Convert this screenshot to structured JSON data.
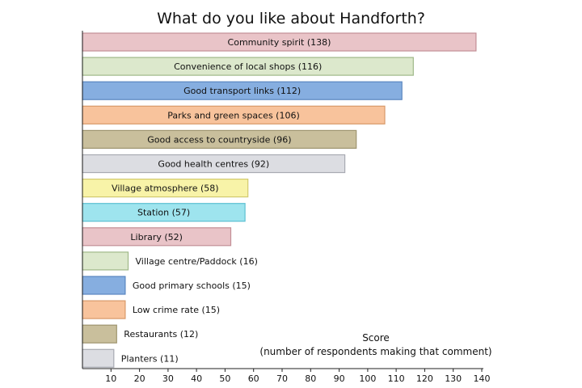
{
  "chart_data": {
    "type": "bar",
    "orientation": "horizontal",
    "title": "What do you like about Handforth?",
    "xlabel_line1": "Score",
    "xlabel_line2": "(number of respondents making that comment)",
    "xlim": [
      0,
      140
    ],
    "xticks": [
      10,
      20,
      30,
      40,
      50,
      60,
      70,
      80,
      90,
      100,
      110,
      120,
      130,
      140
    ],
    "grid": false,
    "bars": [
      {
        "label": "Community spirit (138)",
        "value": 138,
        "fill": "#e9c4c8",
        "stroke": "#c28f96"
      },
      {
        "label": "Convenience of local shops (116)",
        "value": 116,
        "fill": "#dce8cc",
        "stroke": "#9fb888"
      },
      {
        "label": "Good transport links (112)",
        "value": 112,
        "fill": "#86aee0",
        "stroke": "#5a86c0"
      },
      {
        "label": "Parks and green spaces (106)",
        "value": 106,
        "fill": "#f8c39c",
        "stroke": "#d89a6a"
      },
      {
        "label": "Good access to countryside (96)",
        "value": 96,
        "fill": "#c9bf9c",
        "stroke": "#9f9570"
      },
      {
        "label": "Good health centres (92)",
        "value": 92,
        "fill": "#dcdde2",
        "stroke": "#a8aab2"
      },
      {
        "label": "Village atmosphere (58)",
        "value": 58,
        "fill": "#f8f3a8",
        "stroke": "#d2ca6e"
      },
      {
        "label": "Station (57)",
        "value": 57,
        "fill": "#9ee4ee",
        "stroke": "#5cc0d2"
      },
      {
        "label": "Library (52)",
        "value": 52,
        "fill": "#e9c4c8",
        "stroke": "#c28f96"
      },
      {
        "label": "Village centre/Paddock (16)",
        "value": 16,
        "fill": "#dce8cc",
        "stroke": "#9fb888"
      },
      {
        "label": "Good primary schools (15)",
        "value": 15,
        "fill": "#86aee0",
        "stroke": "#5a86c0"
      },
      {
        "label": "Low crime rate (15)",
        "value": 15,
        "fill": "#f8c39c",
        "stroke": "#d89a6a"
      },
      {
        "label": "Restaurants (12)",
        "value": 12,
        "fill": "#c9bf9c",
        "stroke": "#9f9570"
      },
      {
        "label": "Planters (11)",
        "value": 11,
        "fill": "#dcdde2",
        "stroke": "#a8aab2"
      }
    ]
  }
}
